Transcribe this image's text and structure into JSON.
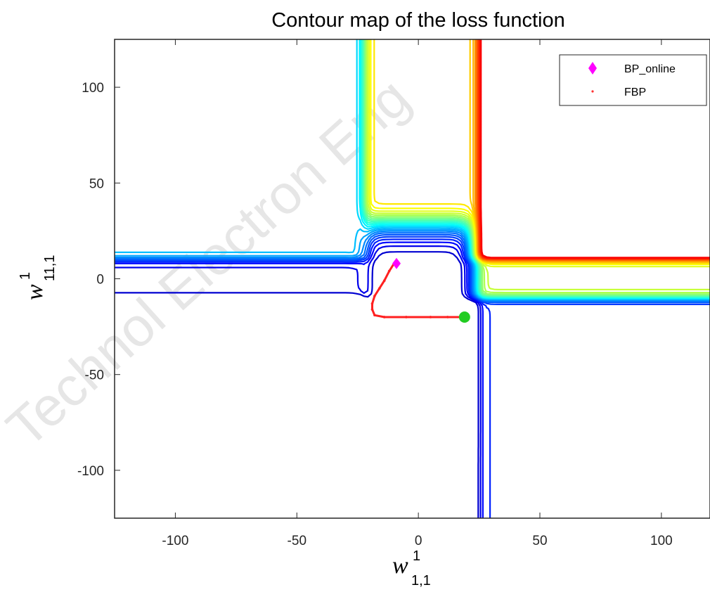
{
  "watermark": "Technol Electron Eng",
  "chart_data": {
    "type": "contour",
    "title": "Contour map of the loss function",
    "xlabel": {
      "base": "w",
      "sup": "1",
      "sub": "1,1"
    },
    "ylabel": {
      "base": "w",
      "sup": "1",
      "sub": "11,1"
    },
    "xlim": [
      -125,
      120
    ],
    "ylim": [
      -125,
      125
    ],
    "xticks": [
      -100,
      -50,
      0,
      50,
      100
    ],
    "yticks": [
      -100,
      -50,
      0,
      50,
      100
    ],
    "grid": false,
    "legend": {
      "position": "top-right",
      "entries": [
        {
          "label": "BP_online",
          "marker": "diamond",
          "color": "#ff00ff"
        },
        {
          "label": "FBP",
          "marker": "dot",
          "color": "#ff3030"
        }
      ]
    },
    "series": [
      {
        "name": "BP_online",
        "marker": "diamond",
        "color": "#ff00ff",
        "points": [
          [
            -9,
            8
          ]
        ]
      },
      {
        "name": "FBP",
        "marker": "dot",
        "color": "#ff2020",
        "points": [
          [
            -10,
            8
          ],
          [
            -12,
            4
          ],
          [
            -14,
            -1
          ],
          [
            -16,
            -5
          ],
          [
            -18,
            -9
          ],
          [
            -19,
            -13
          ],
          [
            -19,
            -16
          ],
          [
            -18,
            -19
          ],
          [
            -14,
            -20
          ],
          [
            -5,
            -20
          ],
          [
            5,
            -20
          ],
          [
            12,
            -20
          ],
          [
            18,
            -20
          ]
        ]
      }
    ],
    "endpoint": {
      "x": 19,
      "y": -20,
      "color": "#22cc22"
    },
    "contour_levels": 32
  }
}
